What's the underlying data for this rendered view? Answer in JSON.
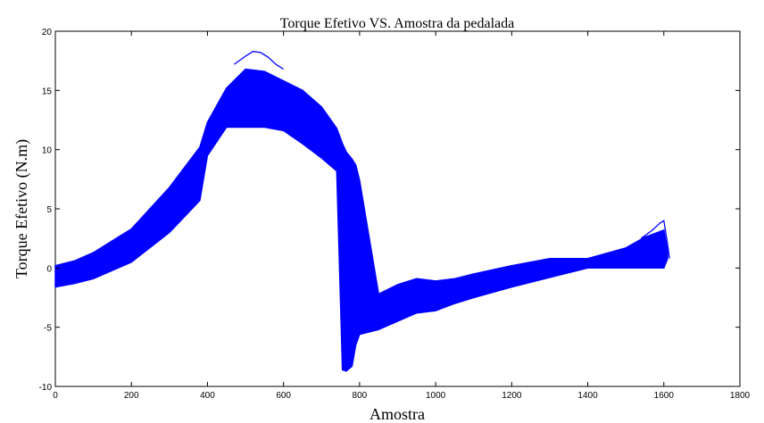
{
  "chart_data": {
    "type": "line",
    "title": "Torque Efetivo  VS.  Amostra da pedalada",
    "xlabel": "Amostra",
    "ylabel": "Torque Efetivo (N.m)",
    "xlim": [
      0,
      1800
    ],
    "ylim": [
      -10,
      20
    ],
    "xticks": [
      0,
      200,
      400,
      600,
      800,
      1000,
      1200,
      1400,
      1600,
      1800
    ],
    "yticks": [
      -10,
      -5,
      0,
      5,
      10,
      15,
      20
    ],
    "grid": false,
    "legend": "none",
    "series_color": "#0000ff",
    "band": {
      "x": [
        0,
        50,
        100,
        200,
        300,
        380,
        400,
        450,
        500,
        550,
        600,
        650,
        700,
        740,
        755,
        765,
        780,
        790,
        800,
        850,
        900,
        950,
        1000,
        1050,
        1100,
        1200,
        1300,
        1400,
        1500,
        1550,
        1600,
        1610
      ],
      "upper": [
        0.2,
        0.6,
        1.3,
        3.3,
        6.8,
        10.2,
        12.3,
        15.2,
        16.8,
        16.6,
        15.8,
        15.0,
        13.6,
        11.8,
        10.5,
        9.8,
        9.2,
        8.7,
        7.4,
        -2.2,
        -1.4,
        -0.9,
        -1.1,
        -0.9,
        -0.5,
        0.2,
        0.8,
        0.8,
        1.7,
        2.6,
        3.2,
        1.4
      ],
      "lower": [
        -1.6,
        -1.3,
        -0.9,
        0.5,
        3.0,
        5.7,
        9.5,
        11.9,
        11.9,
        11.9,
        11.6,
        10.5,
        9.3,
        8.2,
        -8.6,
        -8.7,
        -8.3,
        -6.5,
        -5.6,
        -5.2,
        -4.5,
        -3.8,
        -3.6,
        -3.0,
        -2.5,
        -1.6,
        -0.8,
        0.0,
        0.0,
        0.0,
        0.0,
        0.8
      ]
    },
    "peak_traces": [
      {
        "x": [
          470,
          500,
          520,
          540,
          560,
          580,
          600
        ],
        "y": [
          17.2,
          17.9,
          18.3,
          18.2,
          17.8,
          17.2,
          16.8
        ]
      },
      {
        "x": [
          1540,
          1570,
          1590,
          1600,
          1610,
          1615
        ],
        "y": [
          2.5,
          3.2,
          3.8,
          4.0,
          2.0,
          0.8
        ]
      }
    ]
  }
}
